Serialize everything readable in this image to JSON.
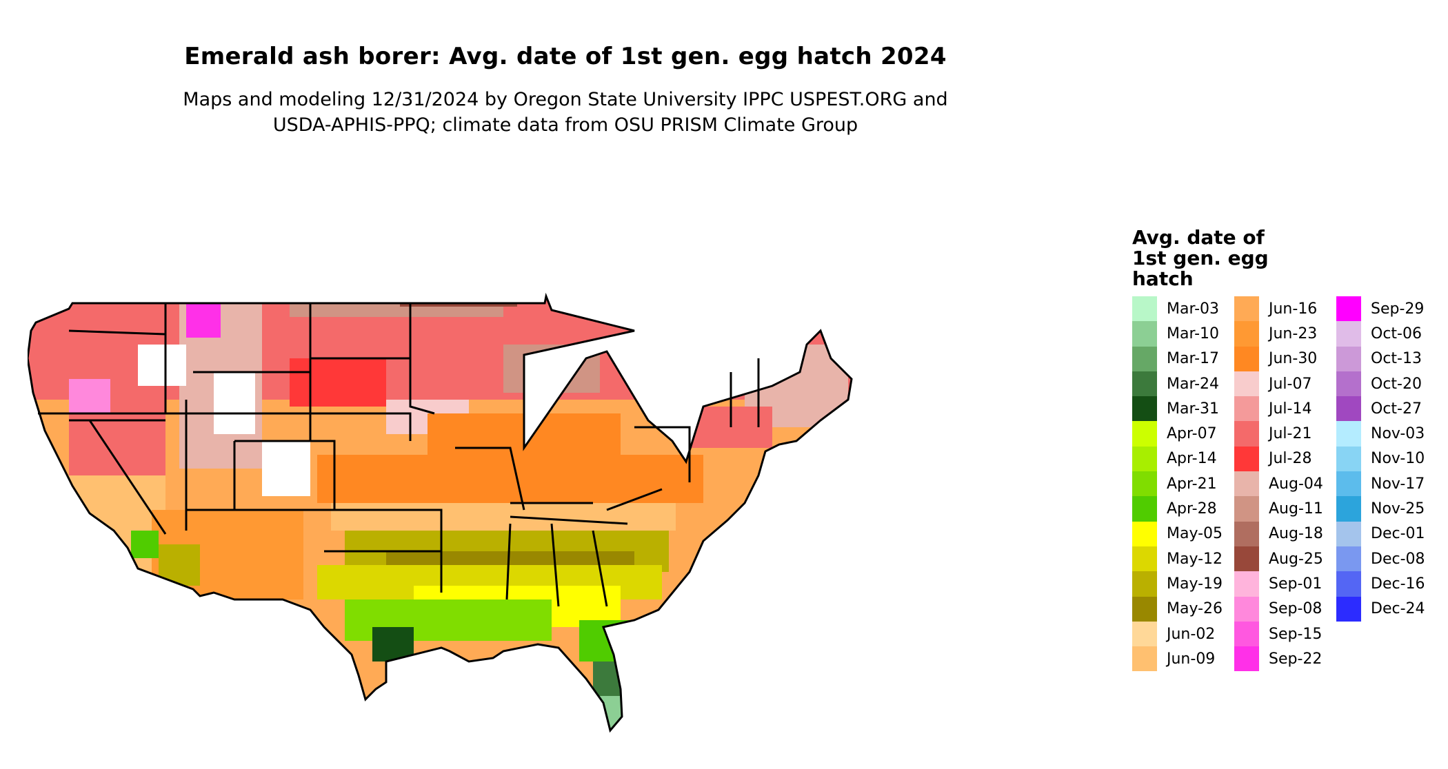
{
  "header": {
    "title": "Emerald ash borer: Avg. date of 1st gen. egg hatch 2024",
    "subtitle_line1": "Maps and modeling 12/31/2024 by Oregon State University IPPC USPEST.ORG and",
    "subtitle_line2": "USDA-APHIS-PPQ; climate data from OSU PRISM Climate Group"
  },
  "legend": {
    "title_line1": "Avg. date of",
    "title_line2": "1st gen. egg",
    "title_line3": "hatch",
    "columns": [
      [
        {
          "label": "Mar-03",
          "color": "#b8f7c8"
        },
        {
          "label": "Mar-10",
          "color": "#8ccf94"
        },
        {
          "label": "Mar-17",
          "color": "#66a866"
        },
        {
          "label": "Mar-24",
          "color": "#3c7a3c"
        },
        {
          "label": "Mar-31",
          "color": "#144e14"
        },
        {
          "label": "Apr-07",
          "color": "#ccff00"
        },
        {
          "label": "Apr-14",
          "color": "#a8ee00"
        },
        {
          "label": "Apr-21",
          "color": "#80dd00"
        },
        {
          "label": "Apr-28",
          "color": "#50cc00"
        },
        {
          "label": "May-05",
          "color": "#ffff00"
        },
        {
          "label": "May-12",
          "color": "#dcd800"
        },
        {
          "label": "May-19",
          "color": "#bab000"
        },
        {
          "label": "May-26",
          "color": "#998800"
        },
        {
          "label": "Jun-02",
          "color": "#ffd898"
        },
        {
          "label": "Jun-09",
          "color": "#ffc070"
        }
      ],
      [
        {
          "label": "Jun-16",
          "color": "#ffaa55"
        },
        {
          "label": "Jun-23",
          "color": "#ff9933"
        },
        {
          "label": "Jun-30",
          "color": "#ff8822"
        },
        {
          "label": "Jul-07",
          "color": "#f8cccc"
        },
        {
          "label": "Jul-14",
          "color": "#f49a9a"
        },
        {
          "label": "Jul-21",
          "color": "#f46a6a"
        },
        {
          "label": "Jul-28",
          "color": "#ff3838"
        },
        {
          "label": "Aug-04",
          "color": "#e8b4aa"
        },
        {
          "label": "Aug-11",
          "color": "#d09484"
        },
        {
          "label": "Aug-18",
          "color": "#b06e60"
        },
        {
          "label": "Aug-25",
          "color": "#98483a"
        },
        {
          "label": "Sep-01",
          "color": "#ffb4dc"
        },
        {
          "label": "Sep-08",
          "color": "#ff88dc"
        },
        {
          "label": "Sep-15",
          "color": "#ff58e0"
        },
        {
          "label": "Sep-22",
          "color": "#ff30e8"
        }
      ],
      [
        {
          "label": "Sep-29",
          "color": "#ff00ff"
        },
        {
          "label": "Oct-06",
          "color": "#e0bce8"
        },
        {
          "label": "Oct-13",
          "color": "#cc99d8"
        },
        {
          "label": "Oct-20",
          "color": "#b470cc"
        },
        {
          "label": "Oct-27",
          "color": "#a048c0"
        },
        {
          "label": "Nov-03",
          "color": "#b4ecff"
        },
        {
          "label": "Nov-10",
          "color": "#88d4f4"
        },
        {
          "label": "Nov-17",
          "color": "#5cbcec"
        },
        {
          "label": "Nov-25",
          "color": "#2ca4dc"
        },
        {
          "label": "Dec-01",
          "color": "#a4c4ec"
        },
        {
          "label": "Dec-08",
          "color": "#7a98f0"
        },
        {
          "label": "Dec-16",
          "color": "#5466f4"
        },
        {
          "label": "Dec-24",
          "color": "#2c2cff"
        }
      ]
    ]
  }
}
